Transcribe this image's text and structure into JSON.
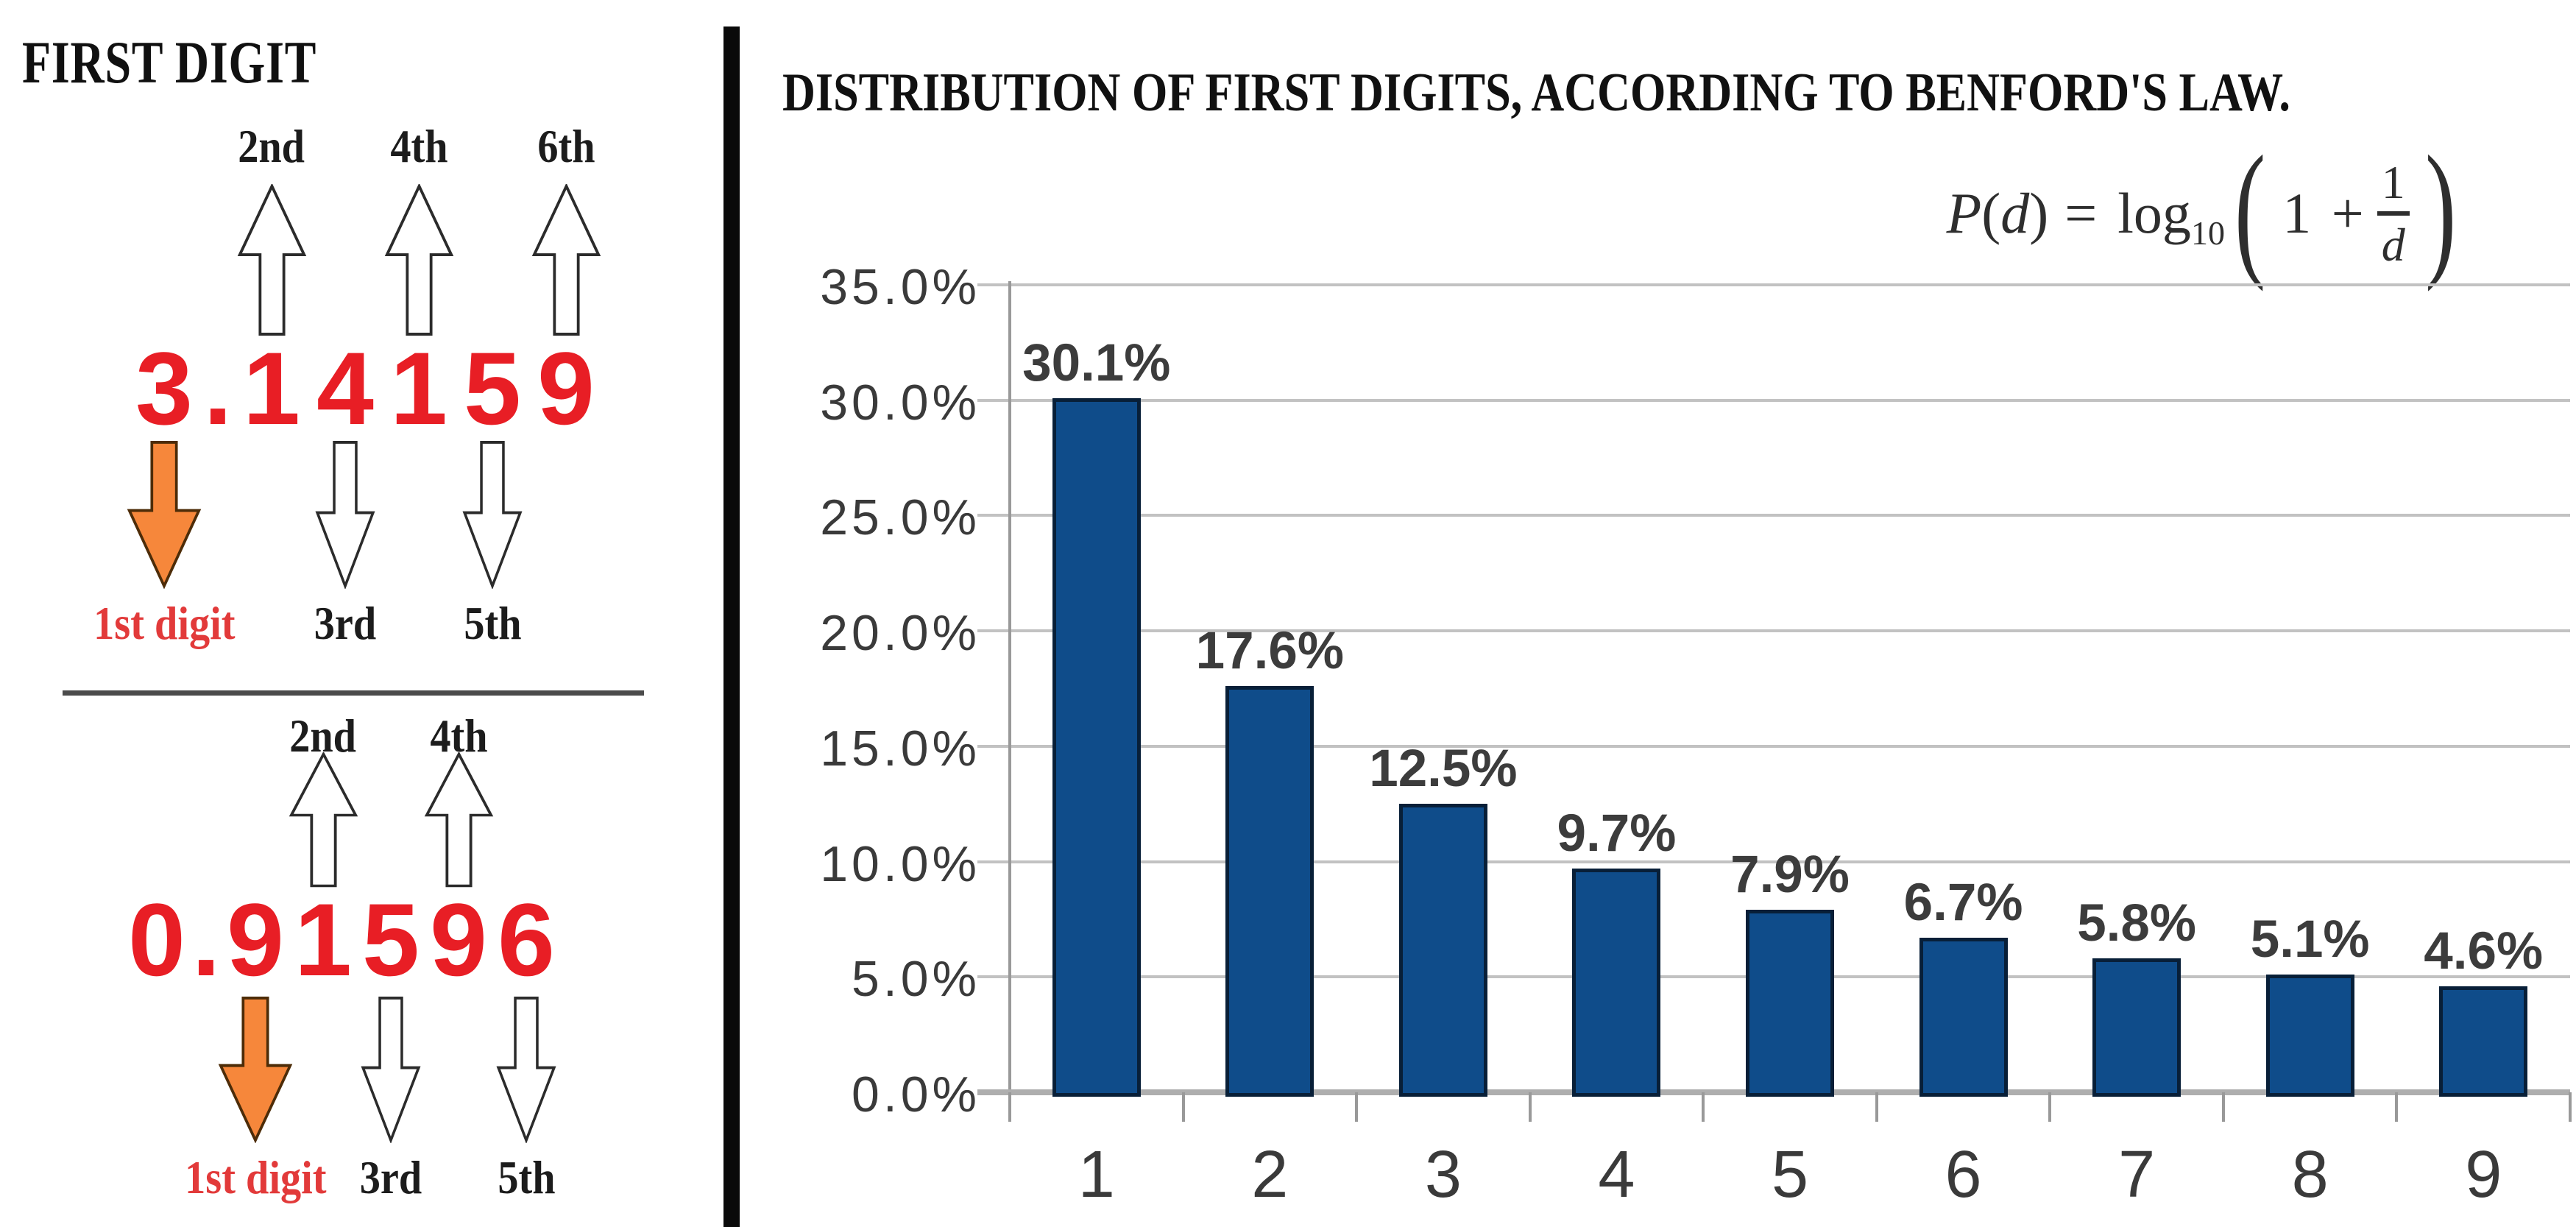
{
  "left_panel": {
    "title": "FIRST DIGIT",
    "first_digit_label": "1st digit",
    "examples": [
      {
        "name": "pi-example",
        "tokens": [
          {
            "ch": "3",
            "marker": "first"
          },
          {
            "ch": ".",
            "marker": "none"
          },
          {
            "ch": "1",
            "marker": "up",
            "label": "2nd"
          },
          {
            "ch": "4",
            "marker": "down",
            "label": "3rd"
          },
          {
            "ch": "1",
            "marker": "up",
            "label": "4th"
          },
          {
            "ch": "5",
            "marker": "down",
            "label": "5th"
          },
          {
            "ch": "9",
            "marker": "up",
            "label": "6th"
          }
        ]
      },
      {
        "name": "decimal-example",
        "tokens": [
          {
            "ch": "0",
            "marker": "none"
          },
          {
            "ch": ".",
            "marker": "none"
          },
          {
            "ch": "9",
            "marker": "first"
          },
          {
            "ch": "1",
            "marker": "up",
            "label": "2nd"
          },
          {
            "ch": "5",
            "marker": "down",
            "label": "3rd"
          },
          {
            "ch": "9",
            "marker": "up",
            "label": "4th"
          },
          {
            "ch": "6",
            "marker": "down",
            "label": "5th"
          }
        ]
      }
    ]
  },
  "chart": {
    "formula": {
      "lhs": "P",
      "lparen": "(",
      "arg": "d",
      "rparen": ")",
      "eq": "=",
      "func": "log",
      "sub": "10",
      "big_lparen": "(",
      "one_plus": "1 +",
      "num": "1",
      "den": "d",
      "big_rparen": ")"
    }
  },
  "chart_data": {
    "type": "bar",
    "title": "DISTRIBUTION OF FIRST DIGITS, ACCORDING TO BENFORD'S LAW.",
    "formula_text": "P(d) = log10(1 + 1/d)",
    "categories": [
      "1",
      "2",
      "3",
      "4",
      "5",
      "6",
      "7",
      "8",
      "9"
    ],
    "values": [
      30.1,
      17.6,
      12.5,
      9.7,
      7.9,
      6.7,
      5.8,
      5.1,
      4.6
    ],
    "bar_labels": [
      "30.1%",
      "17.6%",
      "12.5%",
      "9.7%",
      "7.9%",
      "6.7%",
      "5.8%",
      "5.1%",
      "4.6%"
    ],
    "y_ticks": [
      {
        "label": "35.0%",
        "value": 35
      },
      {
        "label": "30.0%",
        "value": 30
      },
      {
        "label": "25.0%",
        "value": 25
      },
      {
        "label": "20.0%",
        "value": 20
      },
      {
        "label": "15.0%",
        "value": 15
      },
      {
        "label": "10.0%",
        "value": 10
      },
      {
        "label": "5.0%",
        "value": 5
      },
      {
        "label": "0.0%",
        "value": 0
      }
    ],
    "ylim": [
      0,
      35
    ],
    "grid": "horizontal",
    "legend": "none",
    "xlabel": "",
    "ylabel": ""
  },
  "colors": {
    "bar_fill": "#0f4c8a",
    "bar_border": "#081f38",
    "digit_red": "#e81e25",
    "first_label_red": "#e23a3a",
    "arrow_orange": "#f6873b",
    "grid": "#c2c2c2",
    "axis": "#999999",
    "baseline": "#aeaeae",
    "divider": "#0a0a0a"
  }
}
